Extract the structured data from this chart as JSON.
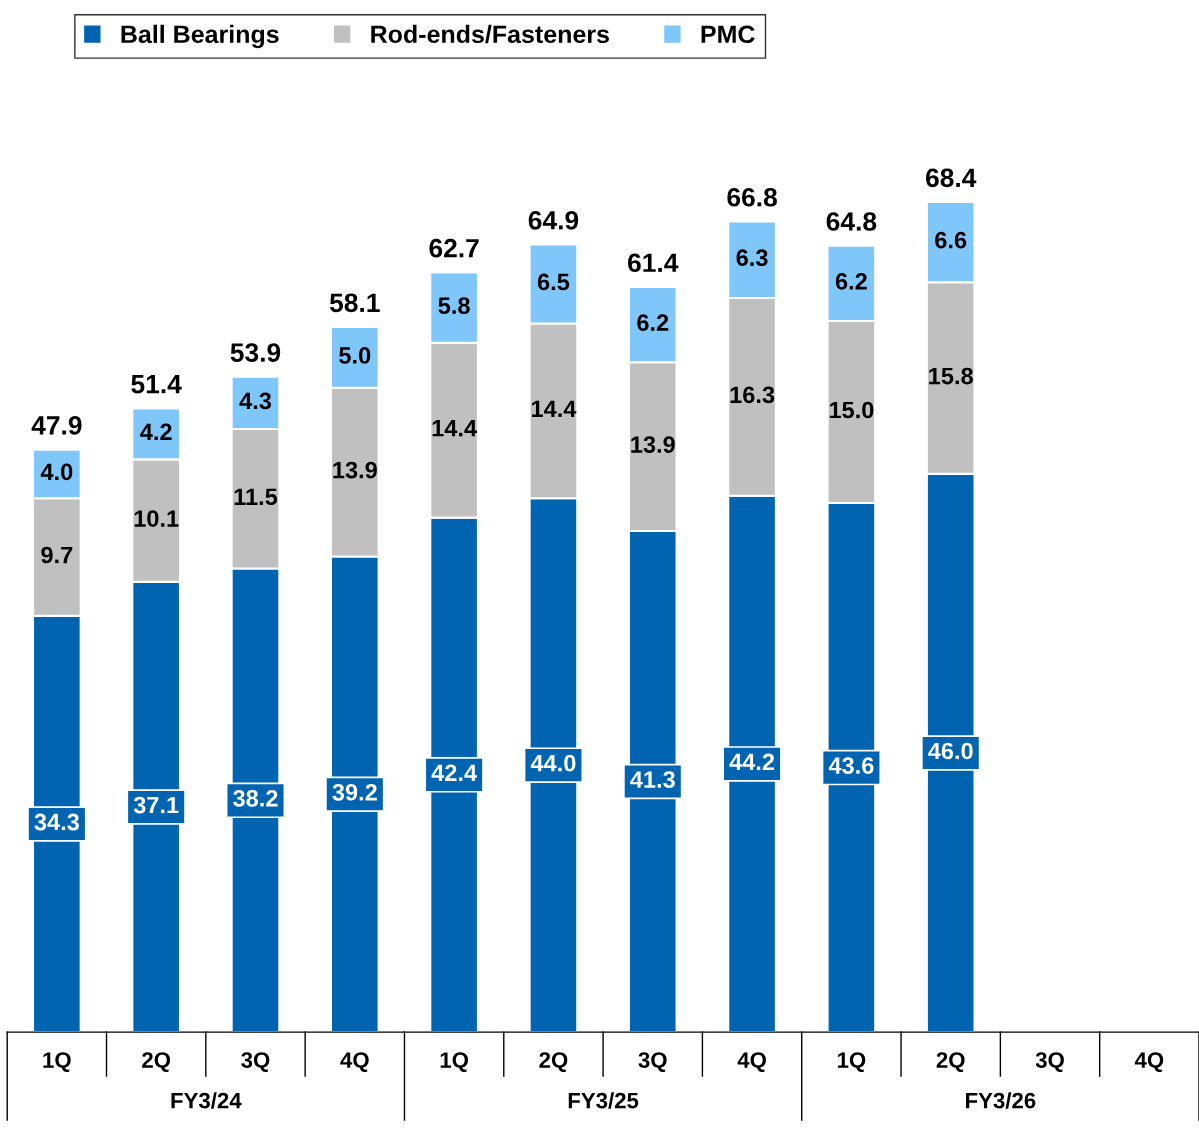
{
  "chart_data": {
    "type": "bar",
    "stacked": true,
    "legend": "top left",
    "grid": false,
    "tick_labels": "x",
    "categories": [
      "1Q",
      "2Q",
      "3Q",
      "4Q",
      "1Q",
      "2Q",
      "3Q",
      "4Q",
      "1Q",
      "2Q",
      "3Q",
      "4Q"
    ],
    "series": [
      {
        "name": "Ball Bearings",
        "color": "#0064b0",
        "values": [
          34.3,
          37.1,
          38.2,
          39.2,
          42.4,
          44.0,
          41.3,
          44.2,
          43.6,
          46.0,
          null,
          null
        ],
        "value_labels": [
          "34.3",
          "37.1",
          "38.2",
          "39.2",
          "42.4",
          "44.0",
          "41.3",
          "44.2",
          "43.6",
          "46.0",
          null,
          null
        ]
      },
      {
        "name": "Rod-ends/Fasteners",
        "color": "#c0c0c0",
        "values": [
          9.7,
          10.1,
          11.5,
          13.9,
          14.4,
          14.4,
          13.9,
          16.3,
          15.0,
          15.8,
          null,
          null
        ],
        "value_labels": [
          "9.7",
          "10.1",
          "11.5",
          "13.9",
          "14.4",
          "14.4",
          "13.9",
          "16.3",
          "15.0",
          "15.8",
          null,
          null
        ]
      },
      {
        "name": "PMC",
        "color": "#7fc6fb",
        "values": [
          4.0,
          4.2,
          4.3,
          5.0,
          5.8,
          6.5,
          6.2,
          6.3,
          6.2,
          6.6,
          null,
          null
        ],
        "value_labels": [
          "4.0",
          "4.2",
          "4.3",
          "5.0",
          "5.8",
          "6.5",
          "6.2",
          "6.3",
          "6.2",
          "6.6",
          null,
          null
        ]
      }
    ],
    "totals": [
      "47.9",
      "51.4",
      "53.9",
      "58.1",
      "62.7",
      "64.9",
      "61.4",
      "66.8",
      "64.8",
      "68.4",
      null,
      null
    ],
    "annotations": [
      "FY3/24",
      "FY3/25",
      "FY3/26"
    ]
  }
}
